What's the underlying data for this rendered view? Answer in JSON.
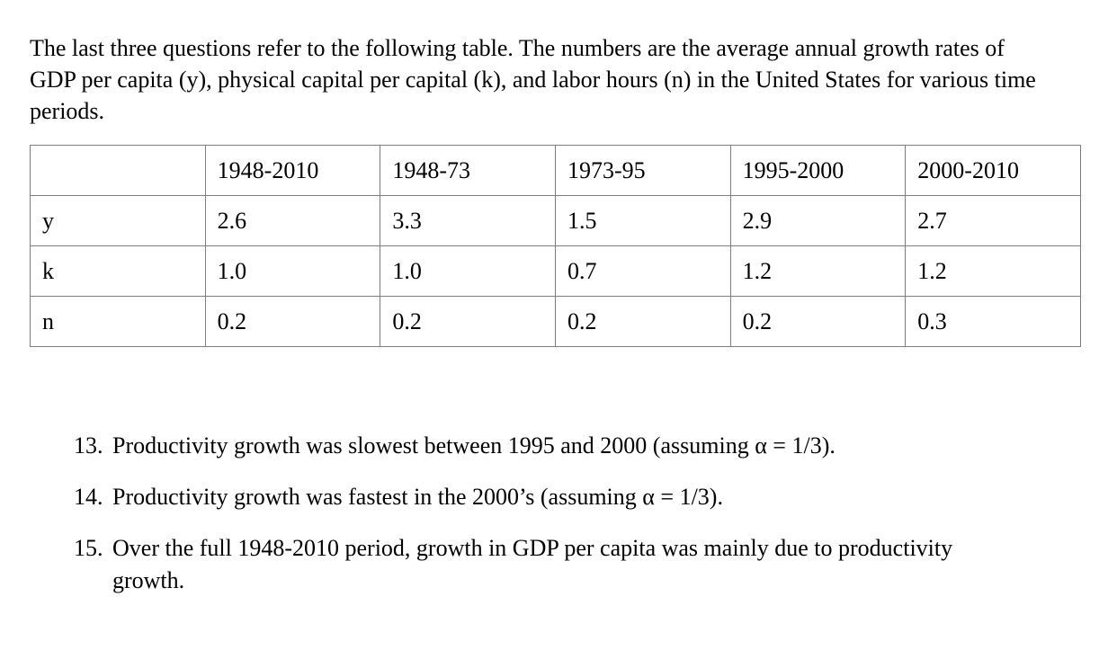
{
  "intro": {
    "text": "The last three questions refer to the following table. The numbers are the average annual growth rates of GDP per capita (y), physical capital per capital (k), and labor hours (n) in the United States for various time periods."
  },
  "table": {
    "columns": [
      "",
      "1948-2010",
      "1948-73",
      "1973-95",
      "1995-2000",
      "2000-2010"
    ],
    "rows": [
      {
        "label": "y",
        "values": [
          "2.6",
          "3.3",
          "1.5",
          "2.9",
          "2.7"
        ]
      },
      {
        "label": "k",
        "values": [
          "1.0",
          "1.0",
          "0.7",
          "1.2",
          "1.2"
        ]
      },
      {
        "label": "n",
        "values": [
          "0.2",
          "0.2",
          "0.2",
          "0.2",
          "0.3"
        ]
      }
    ],
    "border_color": "#808080"
  },
  "questions": [
    {
      "number": "13.",
      "text": "Productivity growth was slowest between 1995 and 2000 (assuming α = 1/3)."
    },
    {
      "number": "14.",
      "text": "Productivity growth was fastest in the 2000’s (assuming α = 1/3)."
    },
    {
      "number": "15.",
      "text": "Over the full 1948-2010 period, growth in GDP per capita was mainly due to productivity growth."
    }
  ]
}
